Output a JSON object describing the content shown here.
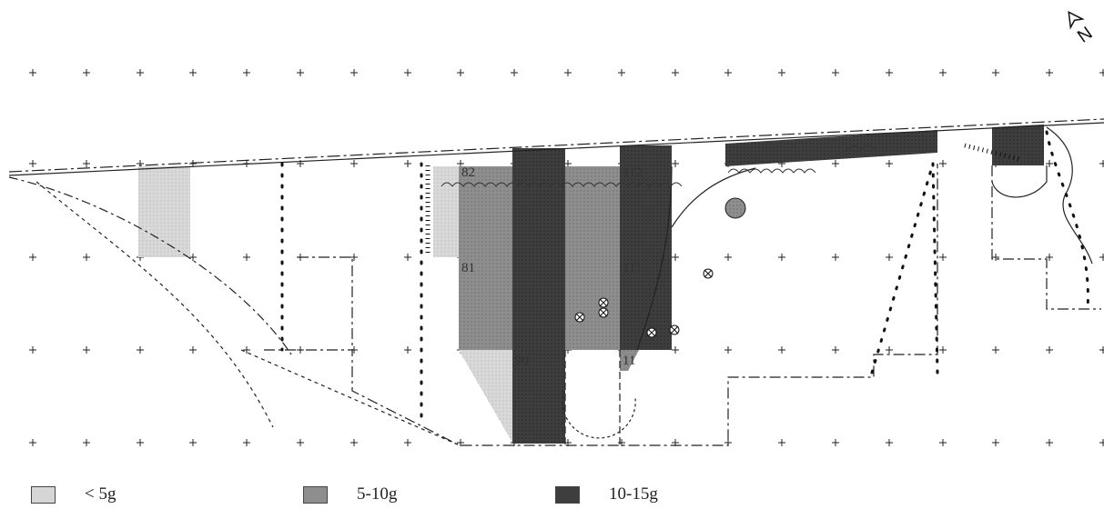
{
  "map": {
    "square_labels": [
      "82",
      "112",
      "81",
      "111",
      "90",
      "11"
    ],
    "north_symbol": "N"
  },
  "legend": {
    "items": [
      {
        "label": "< 5g",
        "shade": "light"
      },
      {
        "label": "5-10g",
        "shade": "mid"
      },
      {
        "label": "10-15g",
        "shade": "dark"
      }
    ]
  },
  "colors": {
    "light": "#d6d6d6",
    "mid": "#8e8e8e",
    "dark": "#3e3e3e",
    "line": "#222222"
  }
}
